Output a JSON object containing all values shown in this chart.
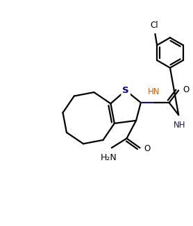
{
  "background_color": "#ffffff",
  "line_color": "#000000",
  "dark_blue": "#1a1a4e",
  "text_orange": "#cc6600",
  "text_blue": "#000080",
  "linewidth": 1.6,
  "figsize": [
    2.78,
    3.26
  ],
  "dpi": 100,
  "xlim": [
    0,
    10
  ],
  "ylim": [
    0,
    12
  ]
}
